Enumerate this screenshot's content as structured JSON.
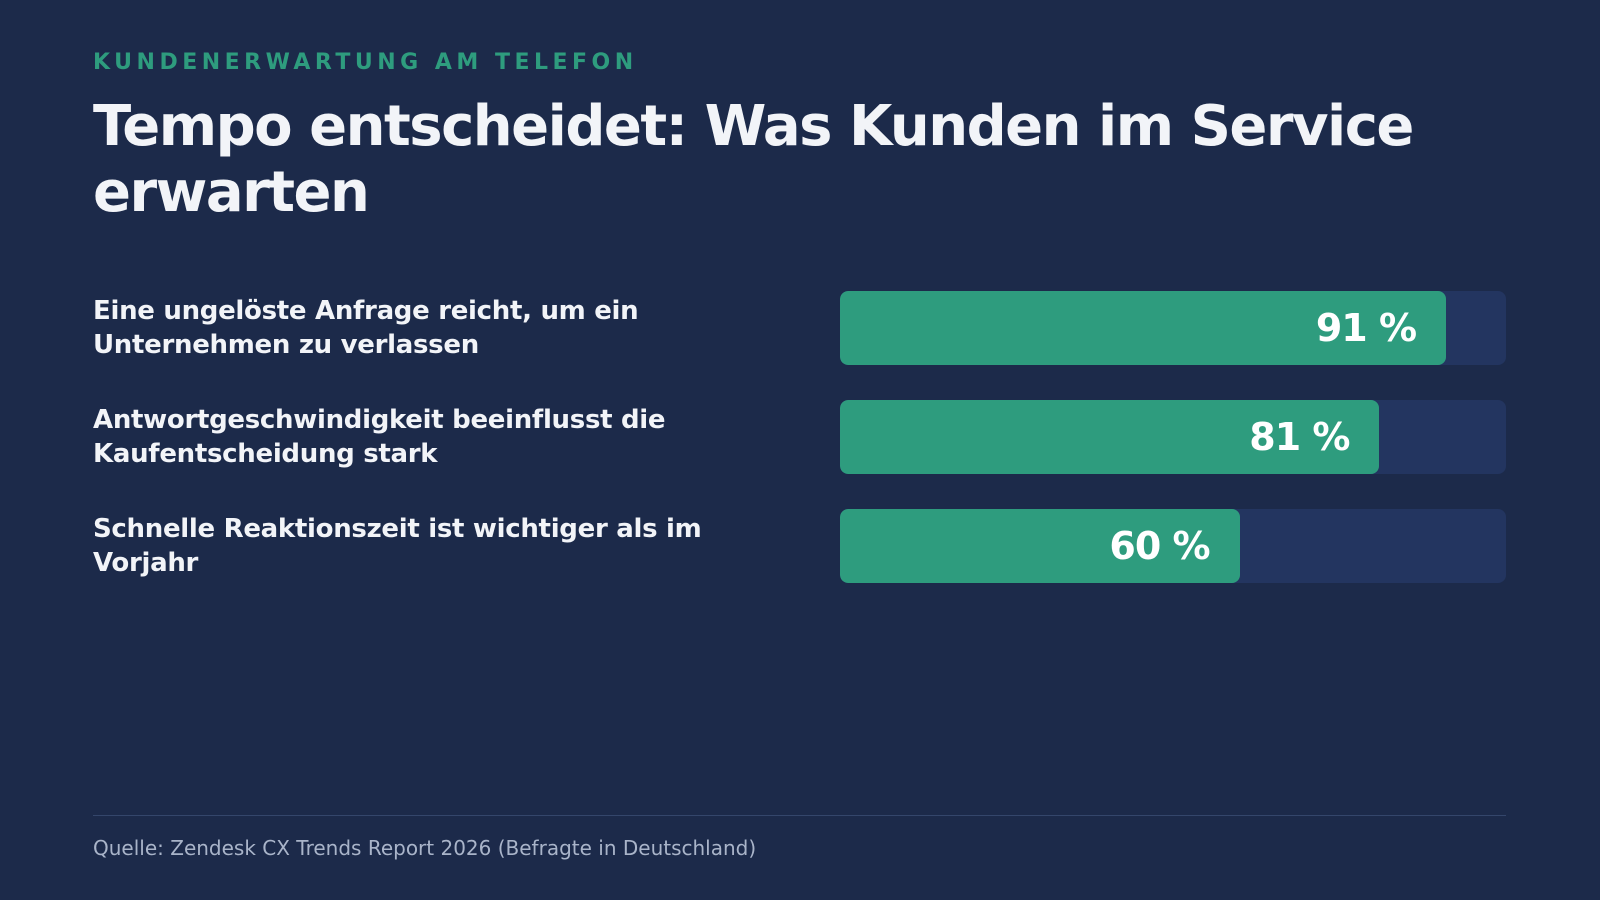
{
  "chart_data": {
    "type": "bar",
    "orientation": "horizontal",
    "subtitle": "KUNDENERWARTUNG AM TELEFON",
    "title": "Tempo entscheidet: Was Kunden im Service erwarten",
    "categories": [
      "Eine ungelöste Anfrage reicht, um ein Unternehmen zu verlassen",
      "Antwortgeschwindigkeit beeinflusst die Kaufentscheidung stark",
      "Schnelle Reaktionszeit ist wichtiger als im Vorjahr"
    ],
    "values": [
      91,
      81,
      60
    ],
    "value_labels": [
      "91 %",
      "81 %",
      "60 %"
    ],
    "xlim": [
      0,
      100
    ],
    "color": "#2e9c7e",
    "track_color": "#233560",
    "source": "Quelle: Zendesk CX Trends Report 2026 (Befragte in Deutschland)"
  }
}
